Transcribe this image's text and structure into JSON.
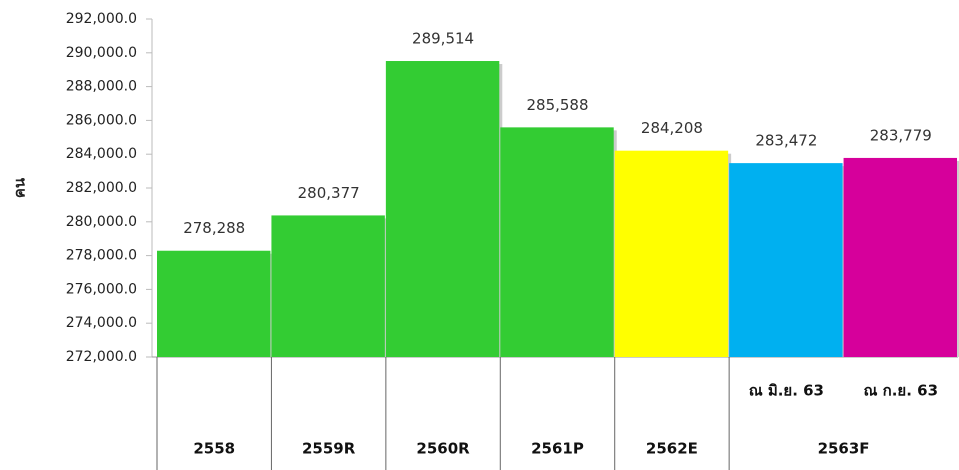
{
  "chart_data": {
    "type": "bar",
    "y_label": "คน",
    "categories": [
      "2558",
      "2559R",
      "2560R",
      "2561P",
      "2562E",
      "ณ มิ.ย. 63",
      "ณ ก.ย. 63"
    ],
    "category_groups": [
      {
        "label": "2563F",
        "members": [
          "ณ มิ.ย. 63",
          "ณ ก.ย. 63"
        ]
      }
    ],
    "values": [
      278288,
      280377,
      289514,
      285588,
      284208,
      283472,
      283779
    ],
    "value_labels": [
      "278,288",
      "280,377",
      "289,514",
      "285,588",
      "284,208",
      "283,472",
      "283,779"
    ],
    "colors": [
      "#33cc33",
      "#33cc33",
      "#33cc33",
      "#33cc33",
      "#ffff00",
      "#00b0f0",
      "#d6009b"
    ],
    "ylim": [
      272000,
      292000
    ],
    "yticks": [
      {
        "value": 272000,
        "label": "272,000.0"
      },
      {
        "value": 274000,
        "label": "274,000.0"
      },
      {
        "value": 276000,
        "label": "276,000.0"
      },
      {
        "value": 278000,
        "label": "278,000.0"
      },
      {
        "value": 280000,
        "label": "280,000.0"
      },
      {
        "value": 282000,
        "label": "282,000.0"
      },
      {
        "value": 284000,
        "label": "284,000.0"
      },
      {
        "value": 286000,
        "label": "286,000.0"
      },
      {
        "value": 288000,
        "label": "288,000.0"
      },
      {
        "value": 290000,
        "label": "290,000.0"
      },
      {
        "value": 292000,
        "label": "292,000.0"
      }
    ],
    "grid": false
  }
}
